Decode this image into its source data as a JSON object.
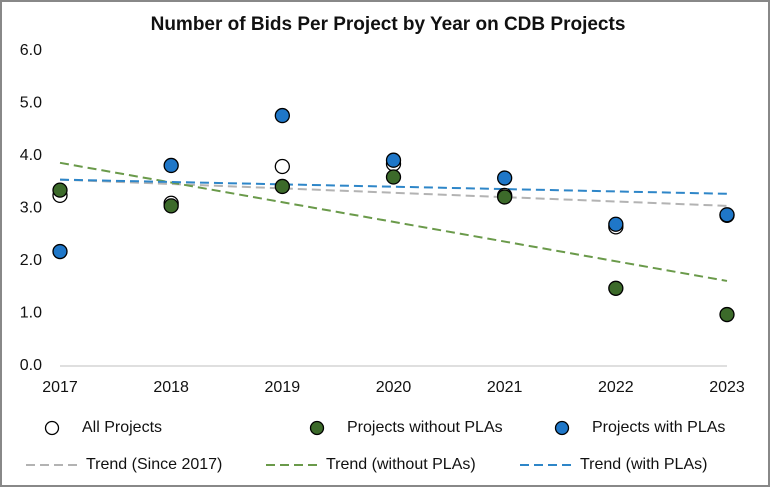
{
  "chart_data": {
    "type": "scatter",
    "title": "Number of Bids Per Project by Year on CDB Projects",
    "x": [
      2017,
      2018,
      2019,
      2020,
      2021,
      2022,
      2023
    ],
    "xlim": [
      2017,
      2023
    ],
    "xticks": [
      2017,
      2018,
      2019,
      2020,
      2021,
      2022,
      2023
    ],
    "ylim": [
      0,
      6
    ],
    "yticks": [
      {
        "value": 0,
        "label": "0.0"
      },
      {
        "value": 1,
        "label": "1.0"
      },
      {
        "value": 2,
        "label": "2.0"
      },
      {
        "value": 3,
        "label": "3.0"
      },
      {
        "value": 4,
        "label": "4.0"
      },
      {
        "value": 5,
        "label": "5.0"
      },
      {
        "value": 6,
        "label": "6.0"
      }
    ],
    "grid": false,
    "series": [
      {
        "name": "All Projects",
        "color": "#ffffff",
        "values": [
          3.25,
          3.1,
          3.8,
          3.85,
          3.25,
          2.65,
          2.87
        ]
      },
      {
        "name": "Projects without PLAs",
        "color": "#3c6a2a",
        "values": [
          3.35,
          3.05,
          3.42,
          3.6,
          3.22,
          1.48,
          0.98
        ]
      },
      {
        "name": "Projects with PLAs",
        "color": "#1f77c8",
        "values": [
          2.18,
          3.82,
          4.77,
          3.92,
          3.58,
          2.7,
          2.88
        ]
      }
    ],
    "trends": [
      {
        "name": "Trend (Since 2017)",
        "color": "#b3b3b3",
        "x": [
          2017,
          2023
        ],
        "values": [
          3.55,
          3.05
        ]
      },
      {
        "name": "Trend (without PLAs)",
        "color": "#6a9a4a",
        "x": [
          2017,
          2023
        ],
        "values": [
          3.87,
          1.62
        ]
      },
      {
        "name": "Trend (with PLAs)",
        "color": "#2e86c8",
        "x": [
          2017,
          2023
        ],
        "values": [
          3.55,
          3.28
        ]
      }
    ]
  }
}
